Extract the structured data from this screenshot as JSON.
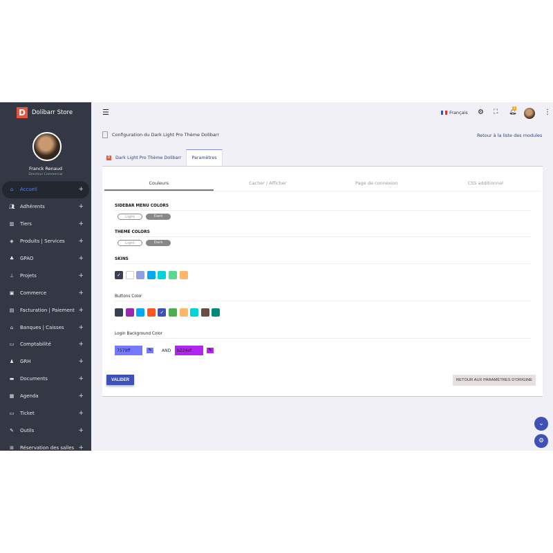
{
  "brand": {
    "logo_letter": "D",
    "name": "Dolibarr Store"
  },
  "user": {
    "name": "Franck Renaud",
    "role": "Directeur Commercial"
  },
  "sidebar": {
    "items": [
      {
        "label": "Accueil",
        "icon": "home-icon",
        "active": true
      },
      {
        "label": "Adhérents",
        "icon": "users-icon"
      },
      {
        "label": "Tiers",
        "icon": "building-icon"
      },
      {
        "label": "Produits | Services",
        "icon": "cube-icon"
      },
      {
        "label": "GPAO",
        "icon": "cubes-icon"
      },
      {
        "label": "Projets",
        "icon": "sitemap-icon"
      },
      {
        "label": "Commerce",
        "icon": "briefcase-icon"
      },
      {
        "label": "Facturation | Paiement",
        "icon": "invoice-icon"
      },
      {
        "label": "Banques | Caisses",
        "icon": "bank-icon"
      },
      {
        "label": "Comptabilité",
        "icon": "accounting-icon"
      },
      {
        "label": "GRH",
        "icon": "user-tie-icon"
      },
      {
        "label": "Documents",
        "icon": "folder-icon"
      },
      {
        "label": "Agenda",
        "icon": "calendar-icon"
      },
      {
        "label": "Ticket",
        "icon": "ticket-icon"
      },
      {
        "label": "Outils",
        "icon": "wrench-icon"
      },
      {
        "label": "Réservation des salles",
        "icon": "grid-icon"
      }
    ]
  },
  "topbar": {
    "language": "Français",
    "notification_count": "0"
  },
  "page": {
    "title": "Configuration du Dark Light Pro Thème Dolibarr",
    "back_link": "Retour à la liste des modules"
  },
  "tabs": [
    {
      "label": "Dark Light Pro Thème Dolibarr"
    },
    {
      "label": "Paramètres",
      "active": true
    }
  ],
  "subtabs": [
    {
      "label": "Couleurs",
      "active": true
    },
    {
      "label": "Cacher / Afficher"
    },
    {
      "label": "Page de connexion"
    },
    {
      "label": "CSS additionnel"
    }
  ],
  "sections": {
    "sidebar_colors": {
      "title": "SIDEBAR MENU COLORS",
      "light": "Light",
      "dark": "Dark",
      "selected": "Dark"
    },
    "theme_colors": {
      "title": "THEME COLORS",
      "light": "Light",
      "dark": "Dark",
      "selected": "Dark"
    },
    "skins": {
      "title": "SKINS",
      "colors": [
        "#3a3f51",
        "#ffffff",
        "#8fa0e0",
        "#03a9f4",
        "#00d4d8",
        "#5ad88f",
        "#ffb56a"
      ],
      "selected": 0
    },
    "buttons_color": {
      "title": "Buttons Color",
      "colors": [
        "#3a3f51",
        "#9c27b0",
        "#03a9f4",
        "#ff5722",
        "#3f51b5",
        "#4caf50",
        "#ffb56a",
        "#00d4d8",
        "#6d4c41",
        "#00897b"
      ],
      "selected": 4
    },
    "login_bg": {
      "title": "Login Background Color",
      "color1": "7579ff",
      "color2": "b224ef",
      "and": "AND"
    }
  },
  "actions": {
    "validate": "VALIDER",
    "reset": "RETOUR AUX PARAMÈTRES D'ORIGINE"
  }
}
